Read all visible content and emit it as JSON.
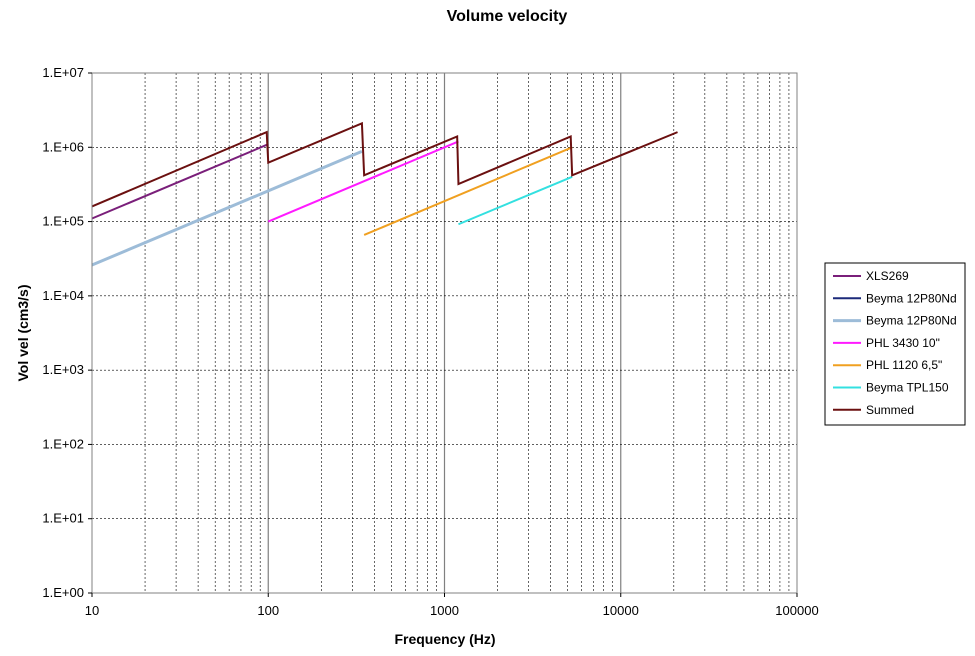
{
  "chart_data": {
    "type": "line",
    "title": "Volume velocity",
    "xlabel": "Frequency (Hz)",
    "ylabel": "Vol vel (cm3/s)",
    "xscale": "log",
    "yscale": "log",
    "xlim": [
      10,
      100000
    ],
    "ylim": [
      1,
      10000000
    ],
    "x_tick_labels": [
      "10",
      "100",
      "1000",
      "10000",
      "100000"
    ],
    "y_tick_labels": [
      "1.E+00",
      "1.E+01",
      "1.E+02",
      "1.E+03",
      "1.E+04",
      "1.E+05",
      "1.E+06",
      "1.E+07"
    ],
    "grid": true,
    "legend_position": "right",
    "series": [
      {
        "name": "XLS269",
        "color": "#7a1f7a",
        "width": 2,
        "x": [
          10,
          100
        ],
        "y": [
          110000,
          1100000
        ]
      },
      {
        "name": "Beyma 12P80Nd",
        "color": "#1c2a7a",
        "width": 2,
        "x": [],
        "y": []
      },
      {
        "name": "Beyma 12P80Nd",
        "color": "#9dbcd8",
        "width": 3,
        "x": [
          10,
          340
        ],
        "y": [
          26000,
          880000
        ]
      },
      {
        "name": "PHL 3430 10\"",
        "color": "#ff1aff",
        "width": 2,
        "x": [
          100,
          1200
        ],
        "y": [
          100000,
          1200000
        ]
      },
      {
        "name": "PHL 1120 6,5\"",
        "color": "#f0a020",
        "width": 2,
        "x": [
          350,
          5300
        ],
        "y": [
          66000,
          1000000
        ]
      },
      {
        "name": "Beyma TPL150",
        "color": "#33e0e0",
        "width": 2,
        "x": [
          1200,
          5300
        ],
        "y": [
          92000,
          400000
        ]
      },
      {
        "name": "Summed",
        "color": "#6b1010",
        "width": 2,
        "x": [
          10,
          98,
          100,
          340,
          350,
          1180,
          1200,
          5200,
          5300,
          21000
        ],
        "y": [
          160000,
          1600000,
          620000,
          2100000,
          420000,
          1400000,
          320000,
          1400000,
          420000,
          1600000
        ]
      }
    ]
  }
}
